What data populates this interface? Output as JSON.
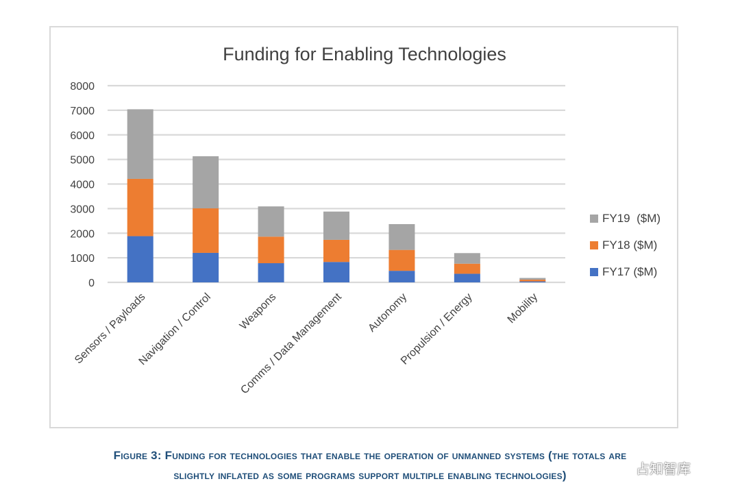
{
  "chart_data": {
    "type": "bar",
    "stacked": true,
    "title": "Funding for Enabling Technologies",
    "categories": [
      "Sensors / Payloads",
      "Navigation / Control",
      "Weapons",
      "Comms / Data Management",
      "Autonomy",
      "Propulsion / Energy",
      "Mobility"
    ],
    "series": [
      {
        "name": "FY17 ($M)",
        "color": "#4472c4",
        "values": [
          1880,
          1200,
          780,
          830,
          470,
          350,
          40
        ]
      },
      {
        "name": "FY18 ($M)",
        "color": "#ed7d31",
        "values": [
          2330,
          1810,
          1080,
          900,
          850,
          410,
          70
        ]
      },
      {
        "name": "FY19  ($M)",
        "color": "#a5a5a5",
        "values": [
          2830,
          2120,
          1230,
          1150,
          1050,
          430,
          70
        ]
      }
    ],
    "yticks": [
      "0",
      "1000",
      "2000",
      "3000",
      "4000",
      "5000",
      "6000",
      "7000",
      "8000"
    ],
    "ylim": [
      0,
      8000
    ],
    "grid": true,
    "legend_position": "right",
    "xlabel": "",
    "ylabel": ""
  },
  "caption": {
    "line1": "Figure 3: Funding for technologies that enable the operation of unmanned systems (the totals are",
    "line2": "slightly inflated as some programs support multiple enabling technologies)"
  },
  "watermark": {
    "text": "占知智库",
    "icon": "wechat-icon"
  }
}
